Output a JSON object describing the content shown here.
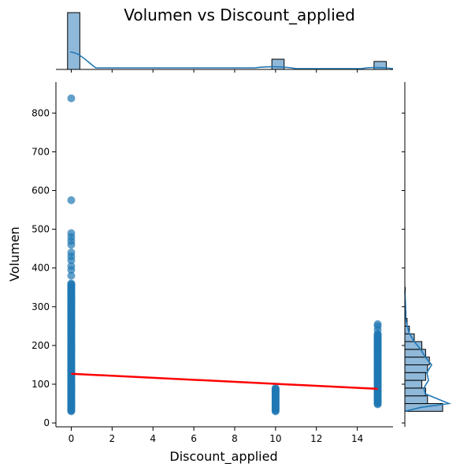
{
  "chart_data": {
    "type": "scatter",
    "title": "Volumen vs Discount_applied",
    "xlabel": "Discount_applied",
    "ylabel": "Volumen",
    "xlim": [
      -0.75,
      15.75
    ],
    "ylim": [
      -10,
      880
    ],
    "xticks": [
      0,
      2,
      4,
      6,
      8,
      10,
      12,
      14
    ],
    "yticks": [
      0,
      100,
      200,
      300,
      400,
      500,
      600,
      700,
      800
    ],
    "grid": false,
    "colors": {
      "points": "#1f77b4",
      "regression": "#ff0000",
      "hist_fill": "#8fb8d9"
    },
    "scatter_groups": [
      {
        "x": 0,
        "y_min": 30,
        "y_max": 360,
        "outliers": [
          380,
          395,
          405,
          420,
          430,
          440,
          460,
          470,
          480,
          490,
          575,
          838
        ]
      },
      {
        "x": 10,
        "y_min": 30,
        "y_max": 90,
        "outliers": []
      },
      {
        "x": 15,
        "y_min": 48,
        "y_max": 230,
        "outliers": [
          240,
          250,
          255
        ]
      }
    ],
    "regression_line": {
      "x": [
        0,
        15
      ],
      "y": [
        127,
        88
      ]
    },
    "marginal_x_hist": {
      "bins": [
        {
          "x": 0,
          "count": 100
        },
        {
          "x": 10,
          "count": 18
        },
        {
          "x": 15,
          "count": 14
        }
      ]
    },
    "marginal_y_hist": {
      "bins": [
        {
          "y": 30,
          "count": 100
        },
        {
          "y": 50,
          "count": 60
        },
        {
          "y": 70,
          "count": 55
        },
        {
          "y": 90,
          "count": 45
        },
        {
          "y": 110,
          "count": 55
        },
        {
          "y": 130,
          "count": 60
        },
        {
          "y": 150,
          "count": 65
        },
        {
          "y": 170,
          "count": 55
        },
        {
          "y": 190,
          "count": 45
        },
        {
          "y": 210,
          "count": 25
        },
        {
          "y": 230,
          "count": 12
        },
        {
          "y": 250,
          "count": 6
        },
        {
          "y": 270,
          "count": 3
        },
        {
          "y": 290,
          "count": 2
        },
        {
          "y": 310,
          "count": 1
        },
        {
          "y": 330,
          "count": 1
        }
      ]
    }
  }
}
